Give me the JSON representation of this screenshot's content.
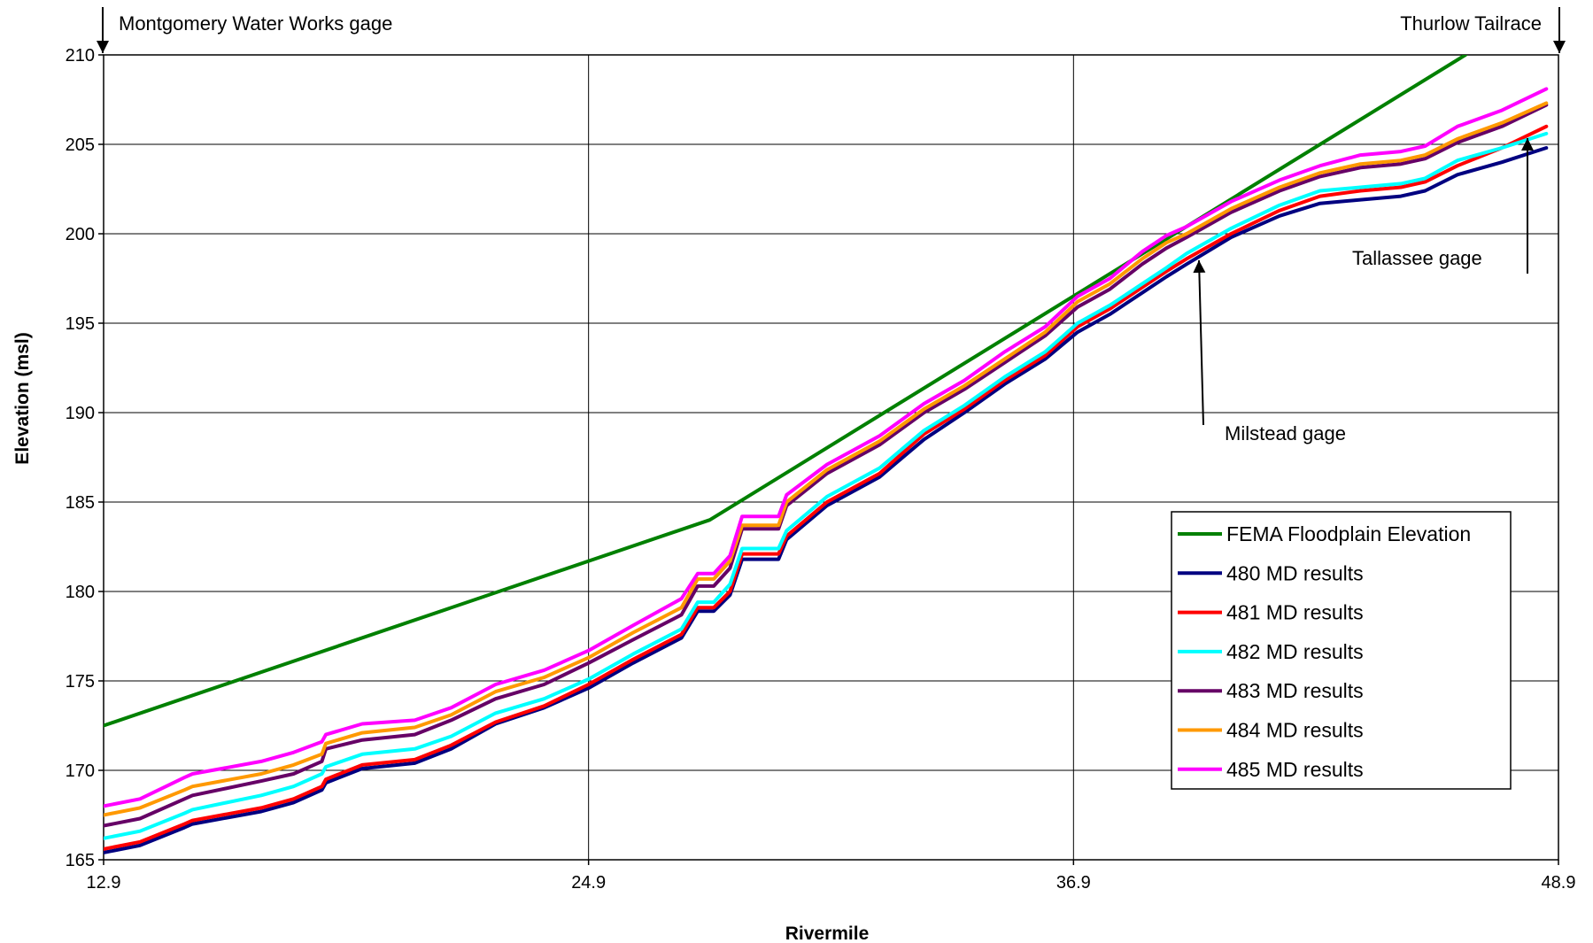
{
  "chart_data": {
    "type": "line",
    "title": "",
    "xlabel": "Rivermile",
    "ylabel": "Elevation (msl)",
    "xlim": [
      12.9,
      48.9
    ],
    "ylim": [
      165,
      210
    ],
    "x_ticks": [
      "12.9",
      "24.9",
      "36.9",
      "48.9"
    ],
    "y_ticks": [
      "165",
      "170",
      "175",
      "180",
      "185",
      "190",
      "195",
      "200",
      "205",
      "210"
    ],
    "grid": true,
    "legend_position": "bottom-right",
    "annotations": [
      {
        "text": "Montgomery Water Works gage",
        "x": 12.9,
        "y": 210
      },
      {
        "text": "Thurlow Tailrace",
        "x": 48.9,
        "y": 210
      },
      {
        "text": "Tallassee gage",
        "x": 48.6,
        "y": 205
      },
      {
        "text": "Milstead gage",
        "x": 39.7,
        "y": 198
      }
    ],
    "series": [
      {
        "name": "FEMA Floodplain Elevation",
        "color": "#008000",
        "x": [
          12.9,
          27.9,
          46.6
        ],
        "y": [
          172.5,
          184.0,
          210.0
        ]
      },
      {
        "name": "480 MD results",
        "color": "#000080",
        "x": [
          12.9,
          13.8,
          14.9,
          15.1,
          16.8,
          17.6,
          18.3,
          18.4,
          19.3,
          20.6,
          21.5,
          22.6,
          23.8,
          24.9,
          26.0,
          27.2,
          27.6,
          28.0,
          28.4,
          28.7,
          29.6,
          29.8,
          30.8,
          32.1,
          33.2,
          34.2,
          35.2,
          36.2,
          37.0,
          37.8,
          38.6,
          39.2,
          39.7,
          40.8,
          42.0,
          43.0,
          44.0,
          45.0,
          45.6,
          46.4,
          47.5,
          48.6
        ],
        "y": [
          165.4,
          165.8,
          166.8,
          167.0,
          167.7,
          168.2,
          168.9,
          169.3,
          170.1,
          170.4,
          171.2,
          172.6,
          173.5,
          174.6,
          176.0,
          177.4,
          178.9,
          178.9,
          179.8,
          181.8,
          181.8,
          182.9,
          184.8,
          186.4,
          188.5,
          190.0,
          191.6,
          193.0,
          194.5,
          195.5,
          196.7,
          197.6,
          198.3,
          199.8,
          201.0,
          201.7,
          201.9,
          202.1,
          202.4,
          203.3,
          204.0,
          204.8
        ]
      },
      {
        "name": "481 MD results",
        "color": "#ff0000",
        "x": [
          12.9,
          13.8,
          14.9,
          15.1,
          16.8,
          17.6,
          18.3,
          18.4,
          19.3,
          20.6,
          21.5,
          22.6,
          23.8,
          24.9,
          26.0,
          27.2,
          27.6,
          28.0,
          28.4,
          28.7,
          29.6,
          29.8,
          30.8,
          32.1,
          33.2,
          34.2,
          35.2,
          36.2,
          37.0,
          37.8,
          38.6,
          39.2,
          39.7,
          40.8,
          42.0,
          43.0,
          44.0,
          45.0,
          45.6,
          46.4,
          47.5,
          48.6
        ],
        "y": [
          165.6,
          166.0,
          167.0,
          167.2,
          167.9,
          168.4,
          169.1,
          169.5,
          170.3,
          170.6,
          171.4,
          172.7,
          173.6,
          174.8,
          176.2,
          177.6,
          179.1,
          179.1,
          180.0,
          182.1,
          182.1,
          183.1,
          185.0,
          186.6,
          188.8,
          190.2,
          191.8,
          193.2,
          194.8,
          195.8,
          197.0,
          197.9,
          198.6,
          200.0,
          201.3,
          202.1,
          202.4,
          202.6,
          202.9,
          203.8,
          204.8,
          206.0
        ]
      },
      {
        "name": "482 MD results",
        "color": "#00ffff",
        "x": [
          12.9,
          13.8,
          14.9,
          15.1,
          16.8,
          17.6,
          18.3,
          18.4,
          19.3,
          20.6,
          21.5,
          22.6,
          23.8,
          24.9,
          26.0,
          27.2,
          27.6,
          28.0,
          28.4,
          28.7,
          29.6,
          29.8,
          30.8,
          32.1,
          33.2,
          34.2,
          35.2,
          36.2,
          37.0,
          37.8,
          38.6,
          39.2,
          39.7,
          40.8,
          42.0,
          43.0,
          44.0,
          45.0,
          45.6,
          46.4,
          47.5,
          48.6
        ],
        "y": [
          166.2,
          166.6,
          167.6,
          167.8,
          168.6,
          169.1,
          169.8,
          170.2,
          170.9,
          171.2,
          171.9,
          173.2,
          174.0,
          175.1,
          176.5,
          177.9,
          179.4,
          179.4,
          180.4,
          182.4,
          182.4,
          183.4,
          185.3,
          186.9,
          189.0,
          190.4,
          192.0,
          193.4,
          195.0,
          196.0,
          197.2,
          198.1,
          198.9,
          200.3,
          201.6,
          202.4,
          202.6,
          202.8,
          203.1,
          204.1,
          204.8,
          205.6
        ]
      },
      {
        "name": "483 MD results",
        "color": "#660066",
        "x": [
          12.9,
          13.8,
          14.9,
          15.1,
          16.8,
          17.6,
          18.3,
          18.4,
          19.3,
          20.6,
          21.5,
          22.6,
          23.8,
          24.9,
          26.0,
          27.2,
          27.6,
          28.0,
          28.4,
          28.7,
          29.6,
          29.8,
          30.8,
          32.1,
          33.2,
          34.2,
          35.2,
          36.2,
          37.0,
          37.8,
          38.6,
          39.2,
          39.7,
          40.8,
          42.0,
          43.0,
          44.0,
          45.0,
          45.6,
          46.4,
          47.5,
          48.6
        ],
        "y": [
          166.9,
          167.3,
          168.4,
          168.6,
          169.4,
          169.8,
          170.5,
          171.2,
          171.7,
          172.0,
          172.8,
          174.0,
          174.8,
          176.0,
          177.3,
          178.7,
          180.3,
          180.3,
          181.3,
          183.5,
          183.5,
          184.8,
          186.6,
          188.2,
          190.0,
          191.3,
          192.8,
          194.3,
          195.9,
          196.9,
          198.3,
          199.2,
          199.8,
          201.2,
          202.4,
          203.2,
          203.7,
          203.9,
          204.2,
          205.1,
          206.0,
          207.2
        ]
      },
      {
        "name": "484 MD results",
        "color": "#ff9900",
        "x": [
          12.9,
          13.8,
          14.9,
          15.1,
          16.8,
          17.6,
          18.3,
          18.4,
          19.3,
          20.6,
          21.5,
          22.6,
          23.8,
          24.9,
          26.0,
          27.2,
          27.6,
          28.0,
          28.4,
          28.7,
          29.6,
          29.8,
          30.8,
          32.1,
          33.2,
          34.2,
          35.2,
          36.2,
          37.0,
          37.8,
          38.6,
          39.2,
          39.7,
          40.8,
          42.0,
          43.0,
          44.0,
          45.0,
          45.6,
          46.4,
          47.5,
          48.6
        ],
        "y": [
          167.5,
          167.9,
          168.9,
          169.1,
          169.8,
          170.3,
          170.9,
          171.5,
          172.1,
          172.4,
          173.1,
          174.4,
          175.2,
          176.3,
          177.7,
          179.1,
          180.7,
          180.7,
          181.7,
          183.7,
          183.7,
          185.0,
          186.8,
          188.4,
          190.2,
          191.5,
          193.0,
          194.5,
          196.2,
          197.2,
          198.6,
          199.5,
          200.0,
          201.4,
          202.6,
          203.4,
          203.9,
          204.1,
          204.4,
          205.3,
          206.2,
          207.3
        ]
      },
      {
        "name": "485 MD results",
        "color": "#ff00ff",
        "x": [
          12.9,
          13.8,
          14.9,
          15.1,
          16.8,
          17.6,
          18.3,
          18.4,
          19.3,
          20.6,
          21.5,
          22.6,
          23.8,
          24.9,
          26.0,
          27.2,
          27.6,
          28.0,
          28.4,
          28.7,
          29.6,
          29.8,
          30.8,
          32.1,
          33.2,
          34.2,
          35.2,
          36.2,
          37.0,
          37.8,
          38.6,
          39.2,
          39.7,
          40.8,
          42.0,
          43.0,
          44.0,
          45.0,
          45.6,
          46.4,
          47.5,
          48.6
        ],
        "y": [
          168.0,
          168.4,
          169.6,
          169.8,
          170.5,
          171.0,
          171.6,
          172.0,
          172.6,
          172.8,
          173.5,
          174.8,
          175.6,
          176.7,
          178.1,
          179.6,
          181.0,
          181.0,
          182.0,
          184.2,
          184.2,
          185.4,
          187.1,
          188.7,
          190.5,
          191.8,
          193.4,
          194.8,
          196.5,
          197.5,
          199.0,
          199.9,
          200.4,
          201.8,
          203.0,
          203.8,
          204.4,
          204.6,
          204.9,
          206.0,
          206.9,
          208.1
        ]
      }
    ]
  }
}
